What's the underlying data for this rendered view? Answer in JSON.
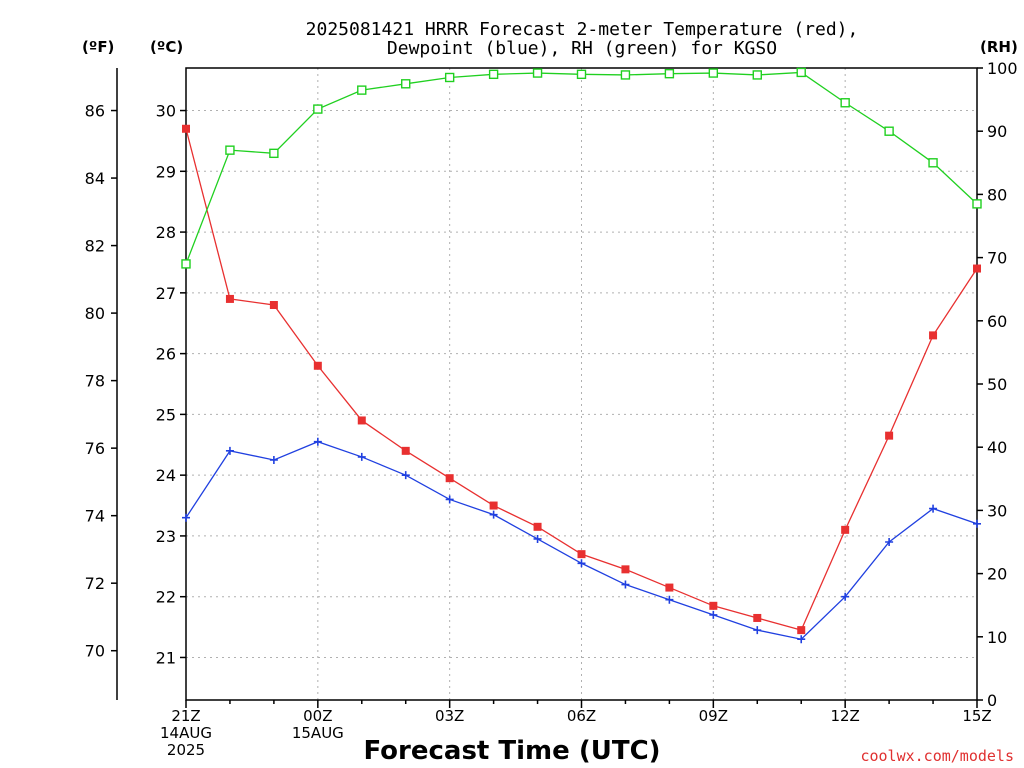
{
  "chart_data": {
    "type": "line",
    "title_line1": "2025081421 HRRR Forecast 2-meter Temperature (red),",
    "title_line2": "Dewpoint (blue), RH (green) for KGSO",
    "xlabel": "Forecast Time (UTC)",
    "credit": "coolwx.com/models",
    "units": {
      "fahrenheit": "(ºF)",
      "celsius": "(ºC)",
      "rh": "(RH)"
    },
    "x_tick_labels": [
      {
        "hour": 0,
        "lines": [
          "21Z",
          "14AUG",
          "2025"
        ]
      },
      {
        "hour": 3,
        "lines": [
          "00Z",
          "15AUG"
        ]
      },
      {
        "hour": 6,
        "lines": [
          "03Z"
        ]
      },
      {
        "hour": 9,
        "lines": [
          "06Z"
        ]
      },
      {
        "hour": 12,
        "lines": [
          "09Z"
        ]
      },
      {
        "hour": 15,
        "lines": [
          "12Z"
        ]
      },
      {
        "hour": 18,
        "lines": [
          "15Z"
        ]
      }
    ],
    "x_range": [
      0,
      18
    ],
    "celsius_ticks": [
      21,
      22,
      23,
      24,
      25,
      26,
      27,
      28,
      29,
      30
    ],
    "fahrenheit_ticks": [
      70,
      72,
      74,
      76,
      78,
      80,
      82,
      84,
      86
    ],
    "rh_ticks": [
      0,
      10,
      20,
      30,
      40,
      50,
      60,
      70,
      80,
      90,
      100
    ],
    "celsius_range": [
      20.3,
      30.7
    ],
    "rh_range": [
      0,
      100
    ],
    "grid": true,
    "colors": {
      "temperature": "#e83030",
      "dewpoint": "#2040e0",
      "rh": "#20d020",
      "grid": "#b0b0b0"
    },
    "series": [
      {
        "name": "Temperature",
        "axis": "celsius",
        "marker": "filled-square",
        "values": [
          29.7,
          26.9,
          26.8,
          25.8,
          24.9,
          24.4,
          23.95,
          23.5,
          23.15,
          22.7,
          22.45,
          22.15,
          21.85,
          21.65,
          21.45,
          23.1,
          24.65,
          26.3,
          27.4
        ]
      },
      {
        "name": "Dewpoint",
        "axis": "celsius",
        "marker": "plus",
        "values": [
          23.3,
          24.4,
          24.25,
          24.55,
          24.3,
          24.0,
          23.6,
          23.35,
          22.95,
          22.55,
          22.2,
          21.95,
          21.7,
          21.45,
          21.3,
          22.0,
          22.9,
          23.45,
          23.2
        ]
      },
      {
        "name": "RH",
        "axis": "rh",
        "marker": "open-square",
        "values": [
          69,
          87,
          86.5,
          93.5,
          96.5,
          97.5,
          98.5,
          99,
          99.2,
          99,
          98.9,
          99.1,
          99.2,
          98.9,
          99.3,
          94.5,
          90,
          85,
          78.5
        ]
      }
    ]
  }
}
